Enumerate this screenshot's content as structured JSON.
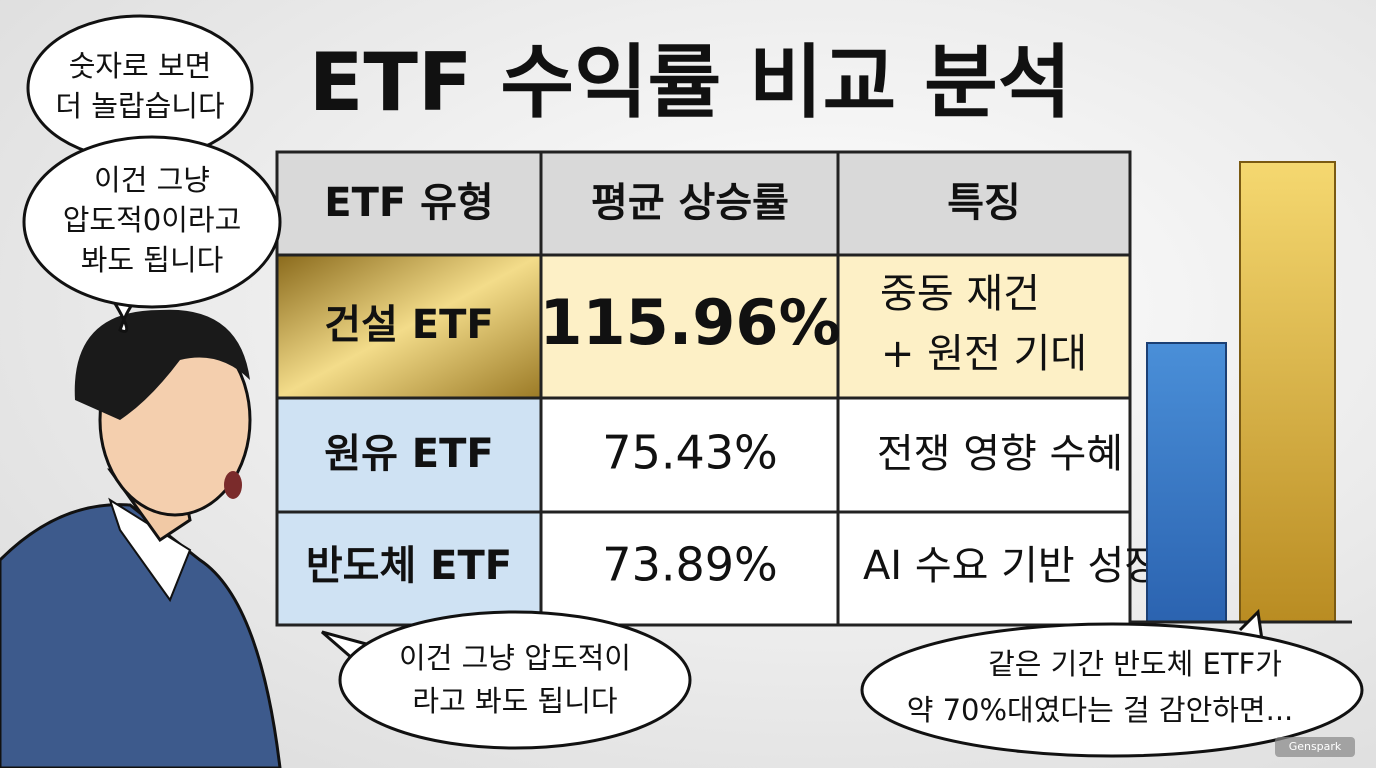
{
  "title": "ETF 수익률 비교 분석",
  "bubbles": [
    {
      "lines": [
        "숫자로 보면",
        "더 놀랍습니다"
      ]
    },
    {
      "lines": [
        "이건 그냥",
        "압도적0이라고",
        "봐도 됩니다"
      ]
    },
    {
      "lines": [
        "이건 그냥 압도적이",
        "라고 봐도 됩니다"
      ]
    },
    {
      "lines": [
        "같은 기간 반도체 ETF가",
        "약 70%대였다는 걸 감안하면..."
      ]
    }
  ],
  "table": {
    "header": [
      "ETF 유형",
      "평균 상승률",
      "특징"
    ],
    "rows": [
      {
        "type": "건설 ETF",
        "rate": "115.96%",
        "feature": [
          "중동 재건",
          "+ 원전 기대"
        ]
      },
      {
        "type": "원유 ETF",
        "rate": "75.43%",
        "feature": [
          "전쟁 영향 수혜"
        ]
      },
      {
        "type": "반도체 ETF",
        "rate": "73.89%",
        "feature": [
          "AI 수요 기반 성장"
        ]
      }
    ]
  },
  "watermark": "Genspark"
}
